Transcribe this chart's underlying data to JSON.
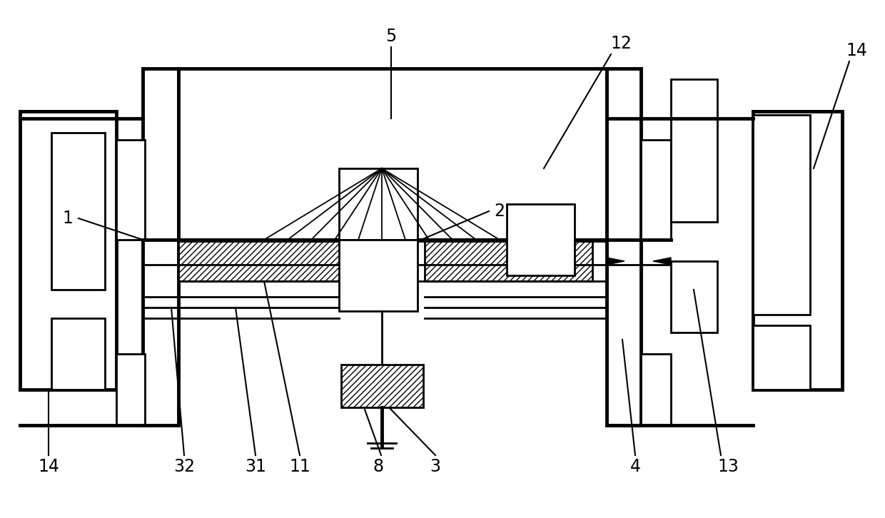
{
  "bg_color": "#ffffff",
  "lc": "#000000",
  "lw": 2.0,
  "lwt": 3.5,
  "lw_label": 1.5,
  "fs": 17,
  "hatch": "////"
}
